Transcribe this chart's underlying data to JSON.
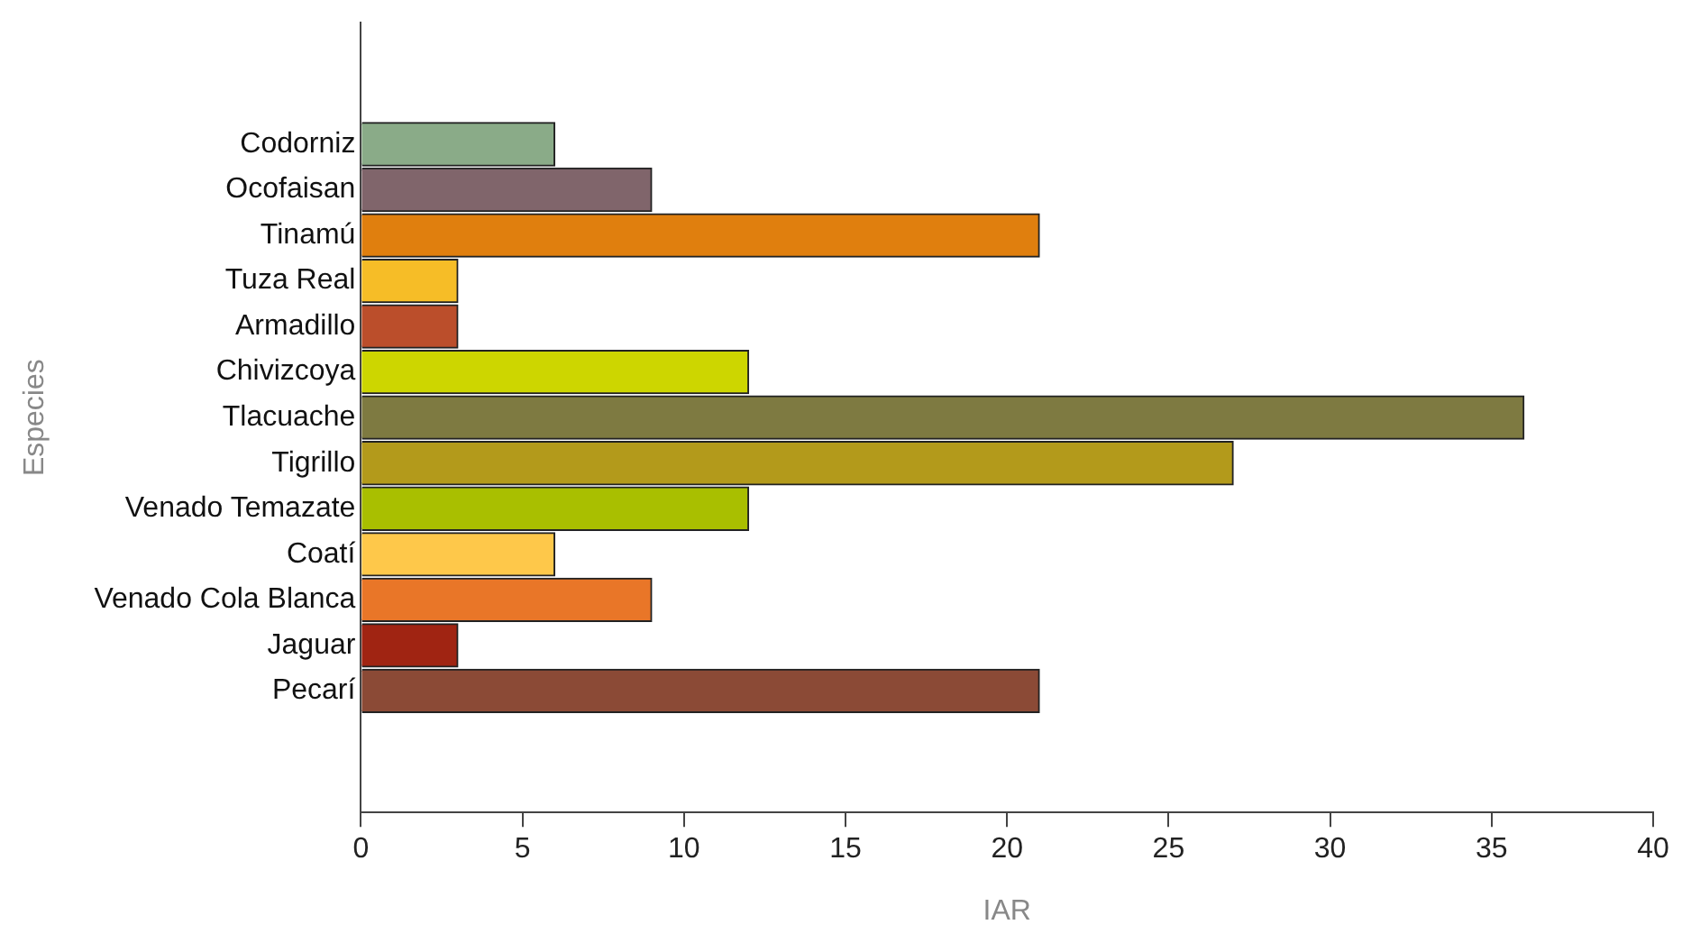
{
  "chart_data": {
    "type": "bar",
    "orientation": "horizontal",
    "xlabel": "IAR",
    "ylabel": "Especies",
    "categories": [
      "Codorniz",
      "Ocofaisan",
      "Tinamú",
      "Tuza Real",
      "Armadillo",
      "Chivizcoya",
      "Tlacuache",
      "Tigrillo",
      "Venado Temazate",
      "Coatí",
      "Venado Cola Blanca",
      "Jaguar",
      "Pecarí"
    ],
    "values": [
      6,
      9,
      21,
      3,
      3,
      12,
      36,
      27,
      12,
      6,
      9,
      3,
      21
    ],
    "colors": [
      "#8aab88",
      "#80656b",
      "#e07f0e",
      "#f6bd27",
      "#bb4e2b",
      "#cdd600",
      "#7e7a41",
      "#b39a1b",
      "#a9bf00",
      "#fec84a",
      "#e97628",
      "#a02412",
      "#8b4a36"
    ],
    "xlim": [
      0,
      40
    ],
    "xticks": [
      0,
      5,
      10,
      15,
      20,
      25,
      30,
      35,
      40
    ],
    "grid": false,
    "legend": false
  }
}
